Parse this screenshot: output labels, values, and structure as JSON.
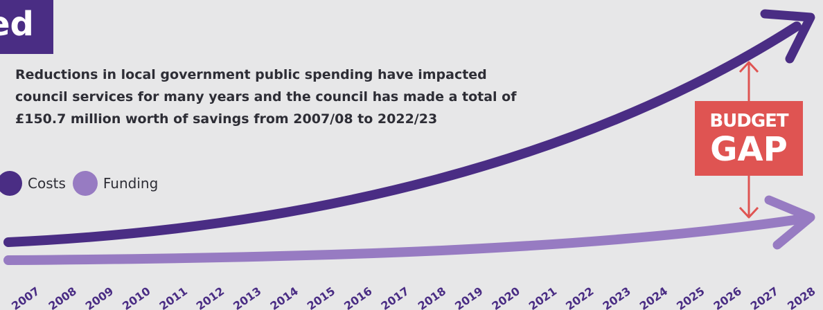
{
  "header": {
    "title_fragment": "ed"
  },
  "description": "Reductions in local government public spending have impacted\ncouncil services for many years and the council has made a total of\n£150.7 million worth of savings from 2007/08 to 2022/23",
  "legend": [
    {
      "label": "Costs",
      "color": "#4a2d84"
    },
    {
      "label": "Funding",
      "color": "#977bc2"
    }
  ],
  "annotation": {
    "line1": "BUDGET",
    "line2": "GAP",
    "color": "#df5452"
  },
  "chart_data": {
    "type": "line",
    "x": [
      "2007",
      "2008",
      "2009",
      "2010",
      "2011",
      "2012",
      "2013",
      "2014",
      "2015",
      "2016",
      "2017",
      "2018",
      "2019",
      "2020",
      "2021",
      "2022",
      "2023",
      "2024",
      "2025",
      "2026",
      "2027",
      "2028"
    ],
    "tick_labels": [
      "2007",
      "2008",
      "2009",
      "2010",
      "2011",
      "2012",
      "2013",
      "2014",
      "2015",
      "2016",
      "2017",
      "2018",
      "2019",
      "2020",
      "2021",
      "2022",
      "2023",
      "2024",
      "2025",
      "2026",
      "2027",
      "2028"
    ],
    "series": [
      {
        "name": "Costs",
        "color": "#4a2d84"
      },
      {
        "name": "Funding",
        "color": "#977bc2"
      }
    ],
    "grid": false,
    "legend_position": "left"
  }
}
